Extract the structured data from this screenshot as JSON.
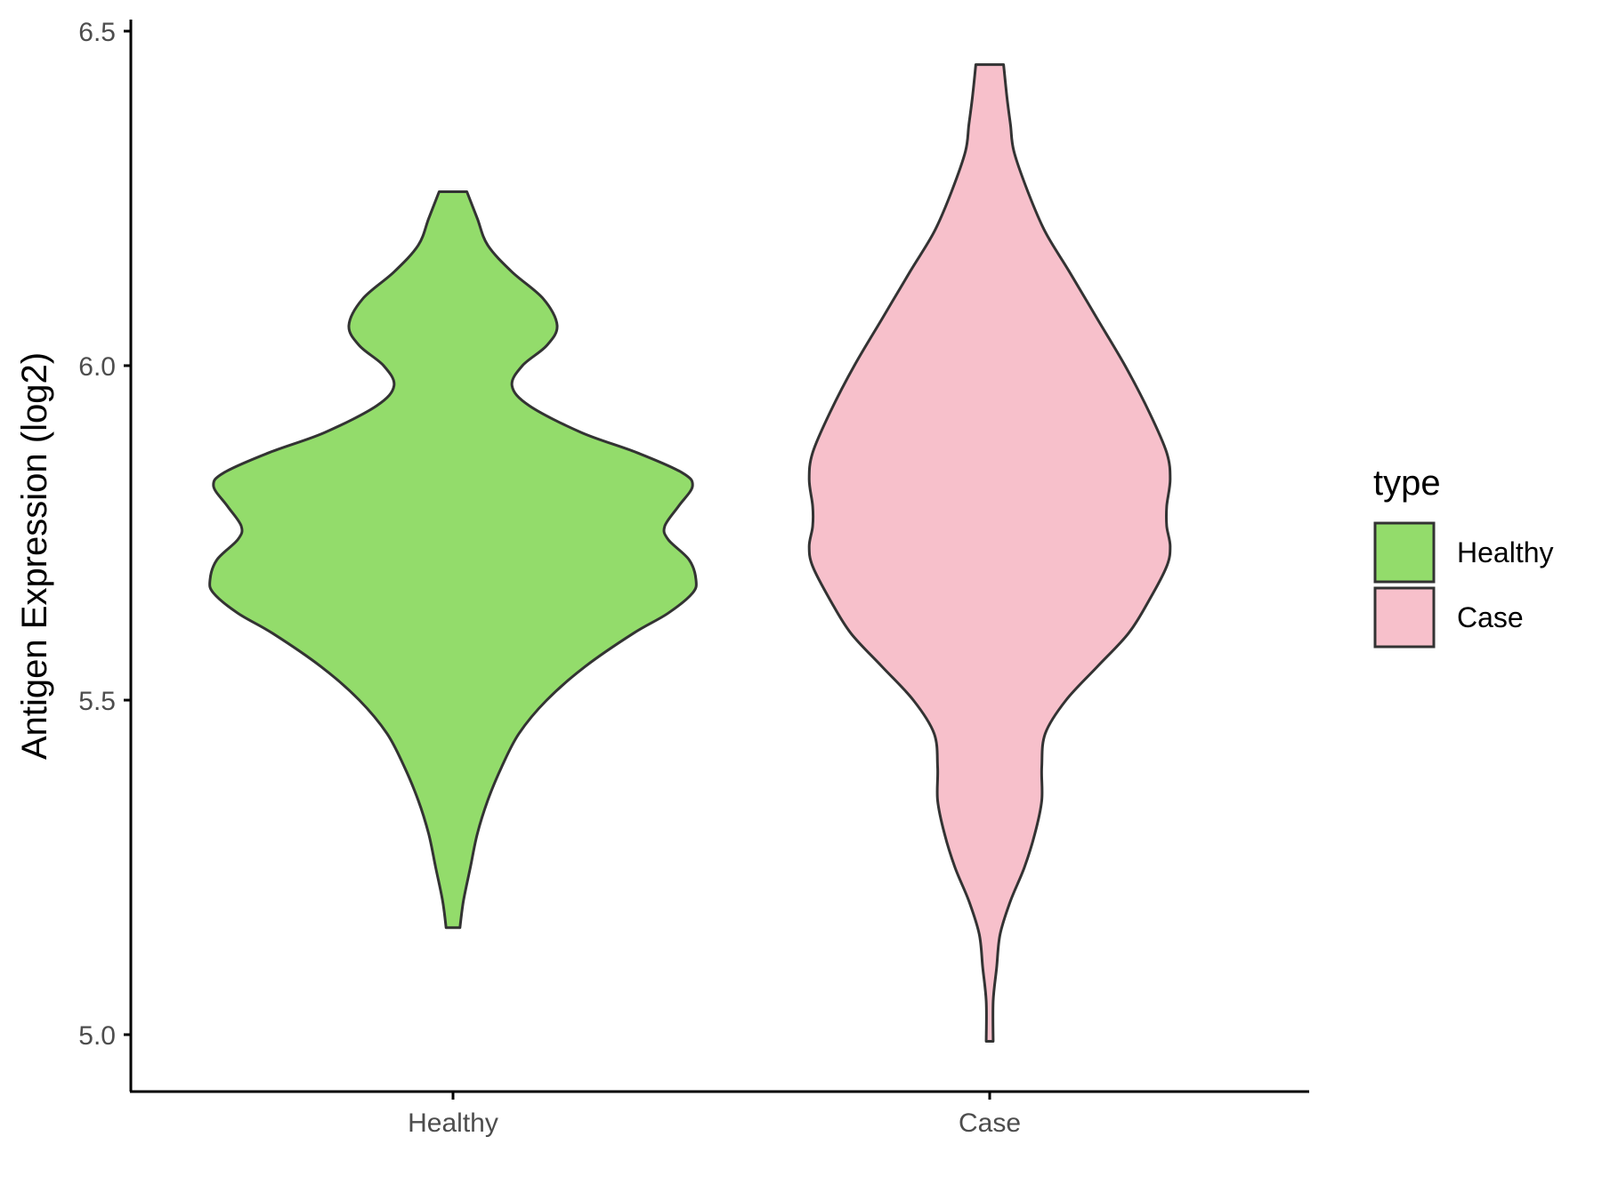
{
  "chart_data": {
    "type": "violin",
    "title": "",
    "xlabel": "",
    "ylabel": "Antigen Expression (log2)",
    "ylim": [
      4.92,
      6.52
    ],
    "y_ticks": [
      5.0,
      5.5,
      6.0,
      6.5
    ],
    "y_tick_labels": [
      "5.0",
      "5.5",
      "6.0",
      "6.5"
    ],
    "categories": [
      "Healthy",
      "Case"
    ],
    "grid": false,
    "legend": {
      "title": "type",
      "position": "right",
      "entries": [
        {
          "label": "Healthy",
          "color": "#93dc6b"
        },
        {
          "label": "Case",
          "color": "#f7c0cb"
        }
      ]
    },
    "outline_color": "#333333",
    "series": [
      {
        "category": "Healthy",
        "color": "#93dc6b",
        "y_range": [
          5.16,
          6.26
        ],
        "density_profile": [
          [
            5.16,
            0.02
          ],
          [
            5.2,
            0.03
          ],
          [
            5.25,
            0.05
          ],
          [
            5.3,
            0.07
          ],
          [
            5.35,
            0.1
          ],
          [
            5.4,
            0.14
          ],
          [
            5.45,
            0.19
          ],
          [
            5.5,
            0.27
          ],
          [
            5.55,
            0.38
          ],
          [
            5.6,
            0.52
          ],
          [
            5.63,
            0.62
          ],
          [
            5.66,
            0.69
          ],
          [
            5.68,
            0.7
          ],
          [
            5.71,
            0.68
          ],
          [
            5.74,
            0.62
          ],
          [
            5.76,
            0.61
          ],
          [
            5.79,
            0.65
          ],
          [
            5.82,
            0.69
          ],
          [
            5.84,
            0.66
          ],
          [
            5.87,
            0.53
          ],
          [
            5.9,
            0.37
          ],
          [
            5.94,
            0.22
          ],
          [
            5.97,
            0.17
          ],
          [
            6.0,
            0.2
          ],
          [
            6.03,
            0.27
          ],
          [
            6.06,
            0.3
          ],
          [
            6.1,
            0.26
          ],
          [
            6.14,
            0.17
          ],
          [
            6.18,
            0.1
          ],
          [
            6.22,
            0.07
          ],
          [
            6.26,
            0.04
          ]
        ]
      },
      {
        "category": "Case",
        "color": "#f7c0cb",
        "y_range": [
          4.99,
          6.45
        ],
        "density_profile": [
          [
            4.99,
            0.01
          ],
          [
            5.05,
            0.01
          ],
          [
            5.1,
            0.02
          ],
          [
            5.15,
            0.03
          ],
          [
            5.2,
            0.06
          ],
          [
            5.25,
            0.1
          ],
          [
            5.3,
            0.13
          ],
          [
            5.35,
            0.15
          ],
          [
            5.4,
            0.15
          ],
          [
            5.45,
            0.16
          ],
          [
            5.5,
            0.22
          ],
          [
            5.55,
            0.31
          ],
          [
            5.6,
            0.4
          ],
          [
            5.65,
            0.46
          ],
          [
            5.7,
            0.51
          ],
          [
            5.73,
            0.52
          ],
          [
            5.76,
            0.51
          ],
          [
            5.79,
            0.51
          ],
          [
            5.83,
            0.52
          ],
          [
            5.87,
            0.51
          ],
          [
            5.93,
            0.46
          ],
          [
            6.0,
            0.39
          ],
          [
            6.07,
            0.31
          ],
          [
            6.14,
            0.23
          ],
          [
            6.2,
            0.16
          ],
          [
            6.26,
            0.11
          ],
          [
            6.32,
            0.07
          ],
          [
            6.36,
            0.06
          ],
          [
            6.4,
            0.05
          ],
          [
            6.45,
            0.04
          ]
        ]
      }
    ]
  }
}
